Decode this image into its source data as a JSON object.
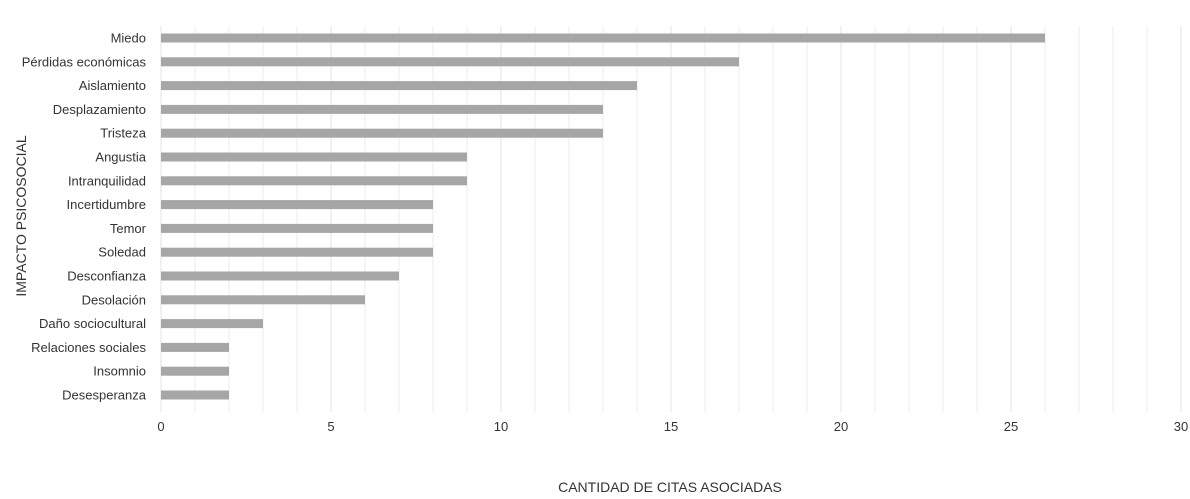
{
  "chart_data": {
    "type": "bar",
    "orientation": "horizontal",
    "title": "",
    "xlabel": "CANTIDAD DE CITAS ASOCIADAS",
    "ylabel": "IMPACTO PSICOSOCIAL",
    "categories": [
      "Miedo",
      "Pérdidas económicas",
      "Aislamiento",
      "Desplazamiento",
      "Tristeza",
      "Angustia",
      "Intranquilidad",
      "Incertidumbre",
      "Temor",
      "Soledad",
      "Desconfianza",
      "Desolación",
      "Daño sociocultural",
      "Relaciones sociales",
      "Insomnio",
      "Desesperanza"
    ],
    "values": [
      26,
      17,
      14,
      13,
      13,
      9,
      9,
      8,
      8,
      8,
      7,
      6,
      3,
      2,
      2,
      2
    ],
    "xlim": [
      0,
      30
    ],
    "xticks": [
      0,
      5,
      10,
      15,
      20,
      25,
      30
    ],
    "grid": true,
    "legend": "none",
    "bar_color": "#a6a6a6",
    "grid_color": "#e3e3e3"
  }
}
